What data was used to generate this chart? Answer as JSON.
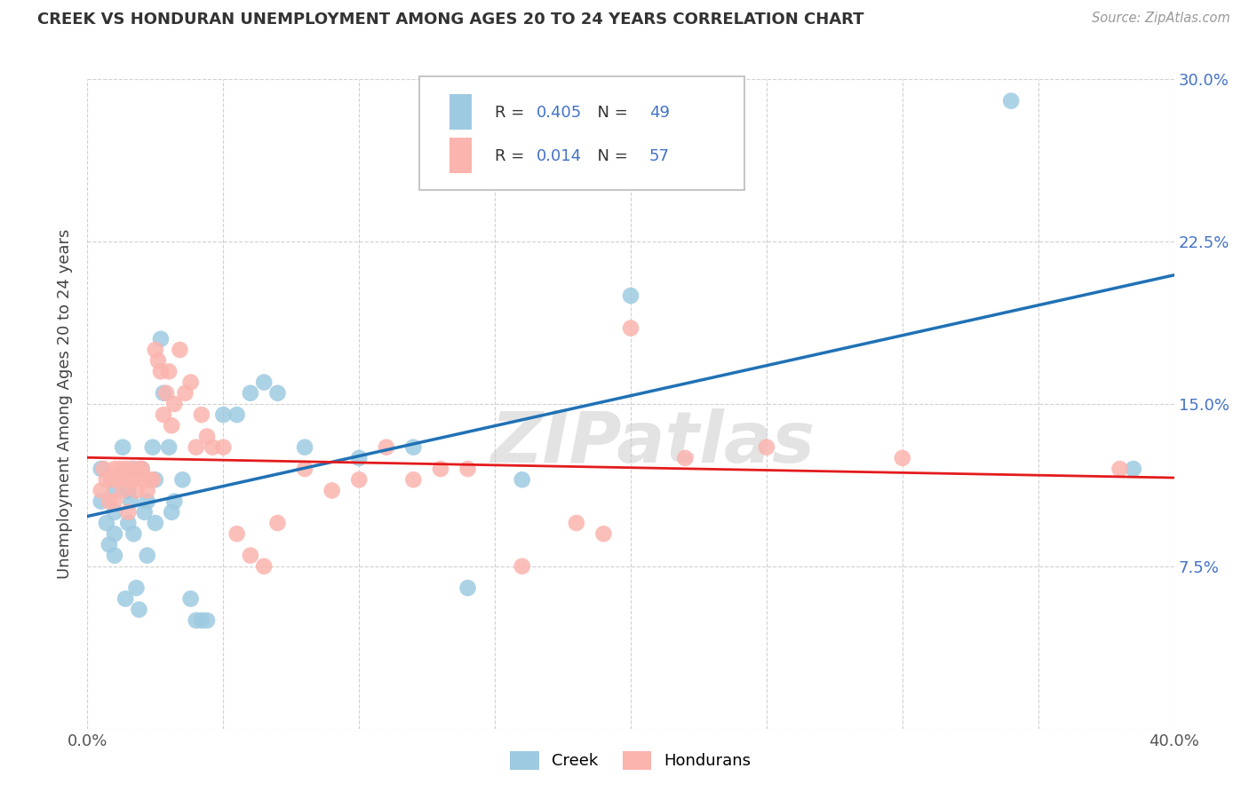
{
  "title": "CREEK VS HONDURAN UNEMPLOYMENT AMONG AGES 20 TO 24 YEARS CORRELATION CHART",
  "source": "Source: ZipAtlas.com",
  "ylabel": "Unemployment Among Ages 20 to 24 years",
  "xlim": [
    0.0,
    0.4
  ],
  "ylim": [
    0.0,
    0.3
  ],
  "xticks": [
    0.0,
    0.05,
    0.1,
    0.15,
    0.2,
    0.25,
    0.3,
    0.35,
    0.4
  ],
  "yticks": [
    0.0,
    0.075,
    0.15,
    0.225,
    0.3
  ],
  "yticklabels_right": [
    "",
    "7.5%",
    "15.0%",
    "22.5%",
    "30.0%"
  ],
  "creek_R": "0.405",
  "creek_N": "49",
  "honduran_R": "0.014",
  "honduran_N": "57",
  "creek_color": "#9ecae1",
  "honduran_color": "#fbb4ae",
  "creek_line_color": "#2171b5",
  "honduran_line_color": "#e41a1c",
  "watermark": "ZIPatlas",
  "legend_color": "#4472c4",
  "creek_x": [
    0.005,
    0.005,
    0.007,
    0.008,
    0.009,
    0.01,
    0.01,
    0.01,
    0.01,
    0.012,
    0.013,
    0.014,
    0.015,
    0.015,
    0.016,
    0.017,
    0.017,
    0.018,
    0.019,
    0.02,
    0.021,
    0.022,
    0.022,
    0.024,
    0.025,
    0.025,
    0.027,
    0.028,
    0.03,
    0.031,
    0.032,
    0.035,
    0.038,
    0.04,
    0.042,
    0.044,
    0.05,
    0.055,
    0.06,
    0.065,
    0.07,
    0.08,
    0.1,
    0.12,
    0.14,
    0.16,
    0.2,
    0.34,
    0.385
  ],
  "creek_y": [
    0.12,
    0.105,
    0.095,
    0.085,
    0.115,
    0.09,
    0.11,
    0.1,
    0.08,
    0.115,
    0.13,
    0.06,
    0.095,
    0.11,
    0.105,
    0.12,
    0.09,
    0.065,
    0.055,
    0.12,
    0.1,
    0.105,
    0.08,
    0.13,
    0.115,
    0.095,
    0.18,
    0.155,
    0.13,
    0.1,
    0.105,
    0.115,
    0.06,
    0.05,
    0.05,
    0.05,
    0.145,
    0.145,
    0.155,
    0.16,
    0.155,
    0.13,
    0.125,
    0.13,
    0.065,
    0.115,
    0.2,
    0.29,
    0.12
  ],
  "honduran_x": [
    0.005,
    0.006,
    0.007,
    0.008,
    0.009,
    0.01,
    0.01,
    0.011,
    0.012,
    0.013,
    0.014,
    0.015,
    0.015,
    0.016,
    0.017,
    0.018,
    0.019,
    0.02,
    0.021,
    0.022,
    0.023,
    0.024,
    0.025,
    0.026,
    0.027,
    0.028,
    0.029,
    0.03,
    0.031,
    0.032,
    0.034,
    0.036,
    0.038,
    0.04,
    0.042,
    0.044,
    0.046,
    0.05,
    0.055,
    0.06,
    0.065,
    0.07,
    0.08,
    0.09,
    0.1,
    0.11,
    0.12,
    0.13,
    0.14,
    0.16,
    0.18,
    0.19,
    0.2,
    0.22,
    0.25,
    0.3,
    0.38
  ],
  "honduran_y": [
    0.11,
    0.12,
    0.115,
    0.105,
    0.115,
    0.12,
    0.105,
    0.115,
    0.12,
    0.11,
    0.12,
    0.115,
    0.1,
    0.12,
    0.115,
    0.11,
    0.12,
    0.12,
    0.115,
    0.11,
    0.115,
    0.115,
    0.175,
    0.17,
    0.165,
    0.145,
    0.155,
    0.165,
    0.14,
    0.15,
    0.175,
    0.155,
    0.16,
    0.13,
    0.145,
    0.135,
    0.13,
    0.13,
    0.09,
    0.08,
    0.075,
    0.095,
    0.12,
    0.11,
    0.115,
    0.13,
    0.115,
    0.12,
    0.12,
    0.075,
    0.095,
    0.09,
    0.185,
    0.125,
    0.13,
    0.125,
    0.12
  ]
}
